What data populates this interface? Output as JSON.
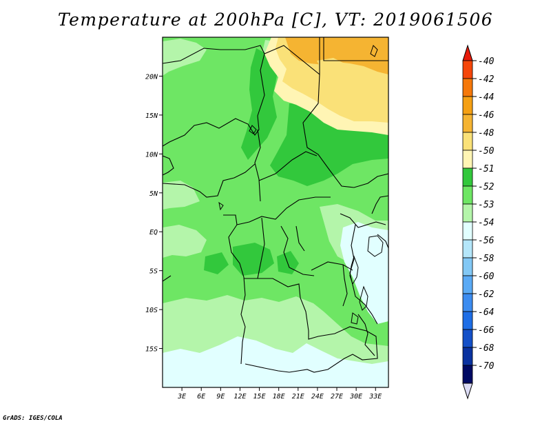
{
  "title": "Temperature at 200hPa [C], VT: 2019061506",
  "credit": "GrADS: IGES/COLA",
  "map": {
    "variable": "Temperature",
    "level": "200hPa",
    "units": "C",
    "valid_time": "2019061506",
    "lat_range": [
      -20,
      25
    ],
    "lon_range": [
      0,
      35
    ],
    "lat_ticks": [
      {
        "value": 20,
        "label": "20N"
      },
      {
        "value": 15,
        "label": "15N"
      },
      {
        "value": 10,
        "label": "10N"
      },
      {
        "value": 5,
        "label": "5N"
      },
      {
        "value": 0,
        "label": "EQ"
      },
      {
        "value": -5,
        "label": "5S"
      },
      {
        "value": -10,
        "label": "10S"
      },
      {
        "value": -15,
        "label": "15S"
      }
    ],
    "lon_ticks": [
      {
        "value": 3,
        "label": "3E"
      },
      {
        "value": 6,
        "label": "6E"
      },
      {
        "value": 9,
        "label": "9E"
      },
      {
        "value": 12,
        "label": "12E"
      },
      {
        "value": 15,
        "label": "15E"
      },
      {
        "value": 18,
        "label": "18E"
      },
      {
        "value": 21,
        "label": "21E"
      },
      {
        "value": 24,
        "label": "24E"
      },
      {
        "value": 27,
        "label": "27E"
      },
      {
        "value": 30,
        "label": "30E"
      },
      {
        "value": 33,
        "label": "33E"
      }
    ]
  },
  "colorbar": {
    "top_arrow_color": "#e61a0a",
    "bottom_arrow_color": "#dcdcf5",
    "segments": [
      {
        "color": "#f5460a"
      },
      {
        "color": "#f5780a"
      },
      {
        "color": "#f5a014"
      },
      {
        "color": "#f5b432"
      },
      {
        "color": "#fae178"
      },
      {
        "color": "#fff5b4"
      },
      {
        "color": "#32c83c"
      },
      {
        "color": "#6ee664"
      },
      {
        "color": "#b4f5aa"
      },
      {
        "color": "#e1ffff"
      },
      {
        "color": "#b4e6fa"
      },
      {
        "color": "#82c8f5"
      },
      {
        "color": "#5aaaf5"
      },
      {
        "color": "#3c8cf0"
      },
      {
        "color": "#1e6ee6"
      },
      {
        "color": "#1450c8"
      },
      {
        "color": "#0a32a0"
      },
      {
        "color": "#000a64"
      }
    ],
    "labels": [
      "-40",
      "-42",
      "-44",
      "-46",
      "-48",
      "-50",
      "-51",
      "-52",
      "-53",
      "-54",
      "-56",
      "-58",
      "-60",
      "-62",
      "-64",
      "-66",
      "-68",
      "-70"
    ]
  }
}
